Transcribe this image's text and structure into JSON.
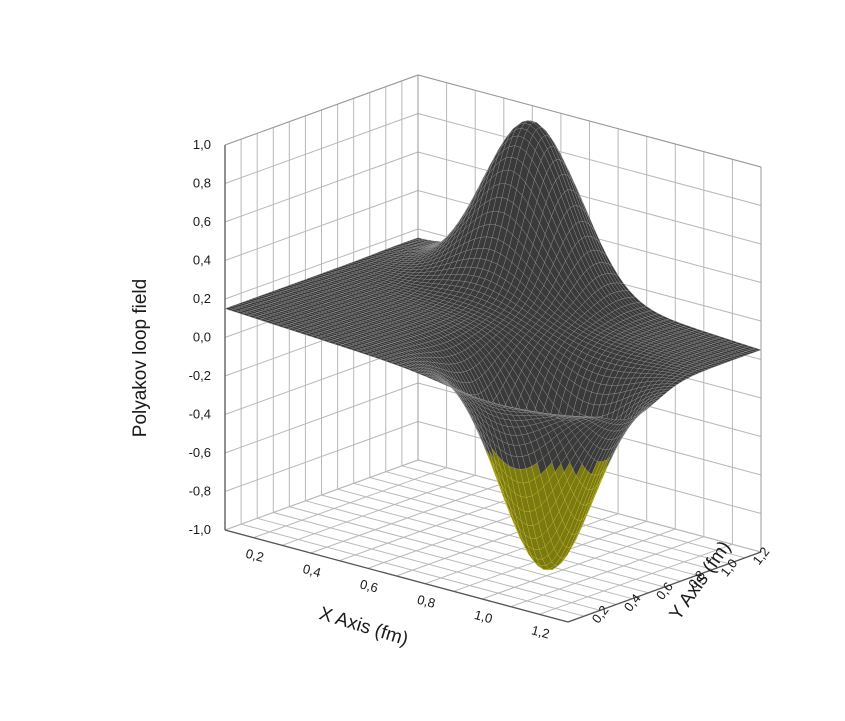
{
  "chart_data": {
    "type": "surface3d",
    "title": "",
    "xlabel": "X Axis (fm)",
    "ylabel": "Y Axis (fm)",
    "zlabel": "Polyakov loop field",
    "xlim": [
      0.1,
      1.3
    ],
    "ylim": [
      0.1,
      1.3
    ],
    "zlim": [
      -1.0,
      1.0
    ],
    "x_ticks": [
      "0,2",
      "0,4",
      "0,6",
      "0,8",
      "1,0",
      "1,2"
    ],
    "y_ticks": [
      "0,2",
      "0,4",
      "0,6",
      "0,8",
      "1,0",
      "1,2"
    ],
    "z_ticks": [
      "-1,0",
      "-0,8",
      "-0,6",
      "-0,4",
      "-0,2",
      "0,0",
      "0,2",
      "0,4",
      "0,6",
      "0,8",
      "1,0"
    ],
    "grid": true,
    "surface_colors": {
      "positive": "#3a3a3a",
      "negative": "#7a7a10"
    },
    "features": [
      {
        "kind": "peak",
        "x": 0.55,
        "y": 1.2,
        "z": 0.97
      },
      {
        "kind": "trough",
        "x": 1.0,
        "y": 0.5,
        "z": -0.97
      }
    ],
    "edge_values": [
      {
        "x": 0.1,
        "y": 0.1,
        "z": 0.15
      },
      {
        "x": 1.3,
        "y": 1.3,
        "z": 0.05
      }
    ]
  }
}
